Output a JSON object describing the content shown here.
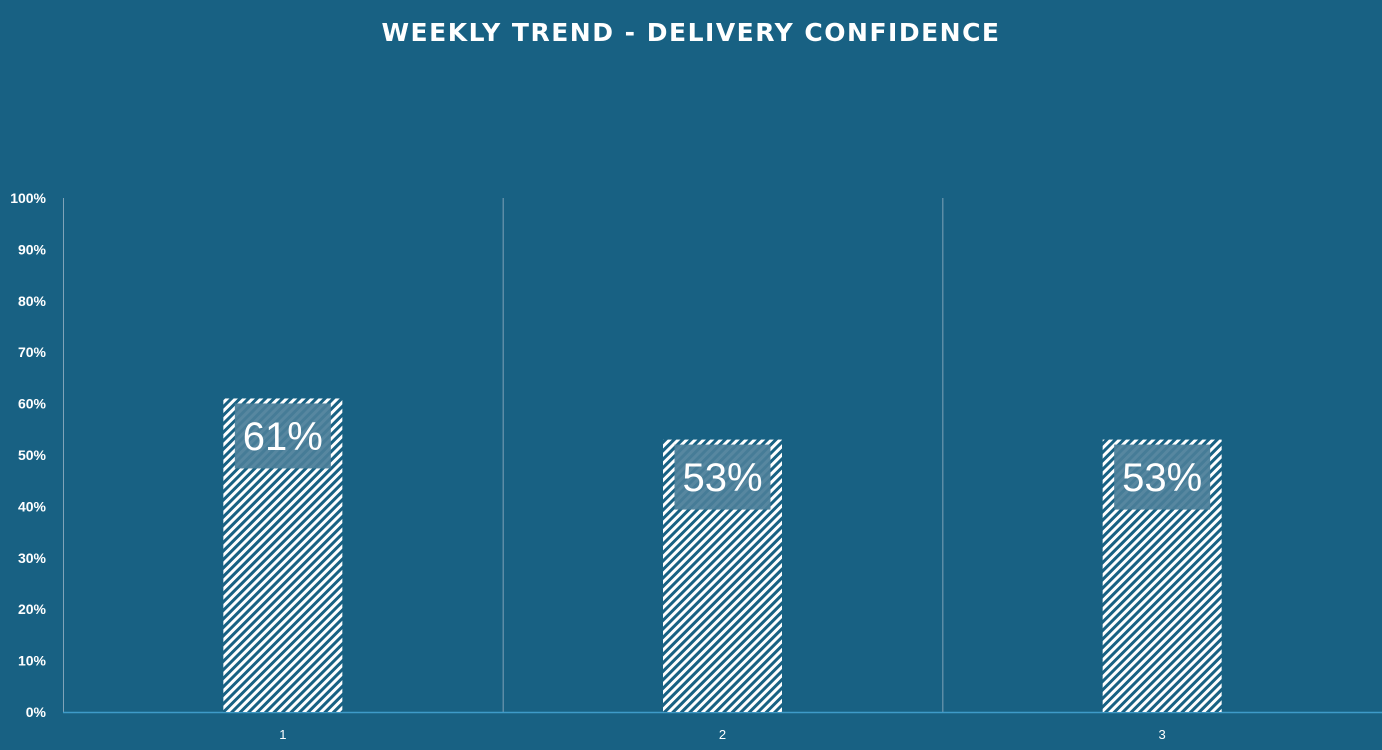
{
  "chart_data": {
    "type": "bar",
    "title": "WEEKLY TREND - DELIVERY CONFIDENCE",
    "categories": [
      "1",
      "2",
      "3"
    ],
    "values": [
      61,
      53,
      53
    ],
    "data_labels": [
      "61%",
      "53%",
      "53%"
    ],
    "y_ticks": [
      "0%",
      "10%",
      "20%",
      "30%",
      "40%",
      "50%",
      "60%",
      "70%",
      "80%",
      "90%",
      "100%"
    ],
    "ylim": [
      0,
      100
    ],
    "xlabel": "",
    "ylabel": "",
    "grid": "vertical category separators",
    "legend": "none",
    "colors": {
      "background": "#186183",
      "bar_fill": "hatched white",
      "label_box": "#4A7E99",
      "text": "#FFFFFF",
      "axis": "#3E9BC9",
      "separator": "#7FA3B8"
    }
  }
}
